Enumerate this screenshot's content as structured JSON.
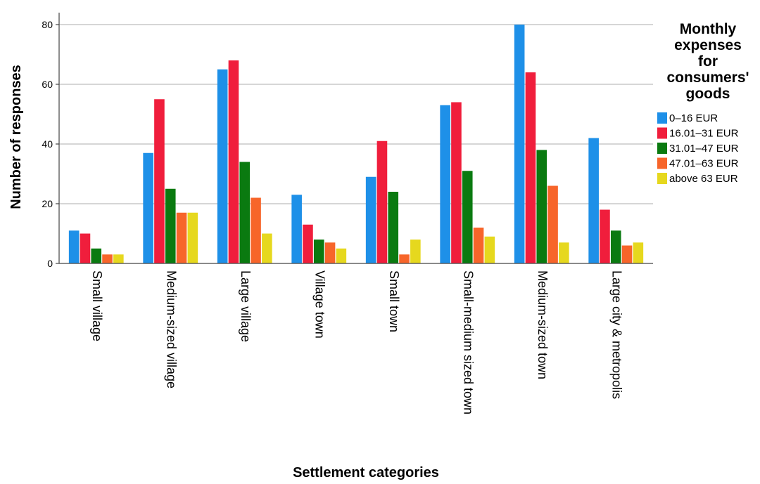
{
  "chart_data": {
    "type": "bar",
    "xlabel": "Settlement categories",
    "ylabel": "Number of responses",
    "ylim": [
      0,
      80
    ],
    "yticks": [
      0,
      20,
      40,
      60,
      80
    ],
    "grid": true,
    "legend_placement": "right",
    "legend_title_lines": [
      "Monthly",
      "expenses",
      "for",
      "consumers'",
      "goods"
    ],
    "categories": [
      "Small village",
      "Medium-sized village",
      "Large village",
      "Village town",
      "Small town",
      "Small-medium sized town",
      "Medium-sized town",
      "Large city & metropolis"
    ],
    "series": [
      {
        "name": "0–16 EUR",
        "color": "#1E90E8",
        "values": [
          11,
          37,
          65,
          23,
          29,
          53,
          80,
          42
        ]
      },
      {
        "name": "16.01–31 EUR",
        "color": "#F01E3C",
        "values": [
          10,
          55,
          68,
          13,
          41,
          54,
          64,
          18
        ]
      },
      {
        "name": "31.01–47 EUR",
        "color": "#0A7A10",
        "values": [
          5,
          25,
          34,
          8,
          24,
          31,
          38,
          11
        ]
      },
      {
        "name": "47.01–63 EUR",
        "color": "#F7652A",
        "values": [
          3,
          17,
          22,
          7,
          3,
          12,
          26,
          6
        ]
      },
      {
        "name": "above 63 EUR",
        "color": "#E6D81E",
        "values": [
          3,
          17,
          10,
          5,
          8,
          9,
          7,
          7
        ]
      }
    ]
  }
}
